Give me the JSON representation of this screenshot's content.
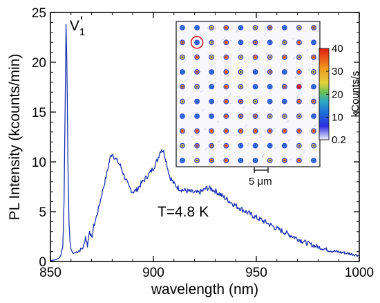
{
  "chart_data": {
    "type": "line",
    "xlabel": "wavelength (nm)",
    "ylabel": "PL Intensity (kcounts/min)",
    "xlim": [
      850,
      1000
    ],
    "ylim": [
      0,
      25
    ],
    "x_ticks": [
      "850",
      "900",
      "950",
      "1000"
    ],
    "y_ticks": [
      "0",
      "5",
      "10",
      "15",
      "20",
      "25"
    ],
    "series": [
      {
        "color": "#1a2fb0",
        "x": [
          850,
          852,
          854,
          855,
          856,
          856.6,
          857.1,
          857.6,
          858.0,
          858.5,
          859.0,
          859.5,
          860,
          861,
          862,
          864,
          866,
          867,
          868,
          869,
          870,
          871,
          873,
          875,
          877,
          879,
          880,
          881,
          882,
          884,
          886,
          888,
          890,
          892,
          894,
          896,
          898,
          900,
          902,
          903,
          904,
          905,
          906,
          907,
          908,
          910,
          912,
          914,
          916,
          918,
          920,
          922,
          924,
          926,
          928,
          930,
          932,
          934,
          936,
          938,
          940,
          945,
          950,
          955,
          960,
          965,
          970,
          975,
          980,
          985,
          990,
          995,
          1000
        ],
        "y": [
          0.1,
          0.15,
          0.3,
          0.6,
          1.5,
          6,
          15,
          23.8,
          20,
          10,
          4,
          2,
          1.2,
          0.8,
          0.9,
          1.1,
          1.4,
          2.5,
          1.6,
          3.2,
          2.2,
          3.5,
          5.0,
          6.8,
          8.5,
          10.4,
          10.9,
          10.5,
          10.2,
          9.6,
          8.5,
          7.5,
          7.0,
          7.2,
          7.8,
          8.3,
          8.8,
          9.4,
          10.2,
          10.9,
          11.3,
          11.0,
          10.3,
          9.3,
          8.5,
          7.8,
          7.4,
          7.2,
          7.1,
          7.0,
          6.9,
          6.9,
          7.1,
          7.4,
          7.3,
          7.1,
          6.8,
          6.5,
          6.2,
          5.9,
          5.6,
          5.0,
          4.4,
          3.9,
          3.3,
          2.8,
          2.3,
          1.8,
          1.45,
          1.15,
          0.95,
          0.8,
          0.6
        ]
      }
    ],
    "annotations": [
      {
        "text": "V",
        "sub": "1",
        "prime": "'",
        "at": [
          859,
          23.2
        ]
      },
      {
        "text": "T=4.8 K",
        "at": [
          902,
          4.5
        ]
      }
    ],
    "inset": {
      "type": "heatmap",
      "grid": [
        10,
        10
      ],
      "colorbar": {
        "min": "0.2",
        "max": "40",
        "ticks": [
          "0.2",
          "10",
          "20",
          "30",
          "40"
        ],
        "label": "kCounts/s"
      },
      "scalebar": "5 μm",
      "colors": [
        "#f6f6fb",
        "#2f3bd8",
        "#2a8ccf",
        "#e8d52a",
        "#f08a1c",
        "#d62020"
      ],
      "highlighted_cell": [
        1,
        1
      ]
    }
  }
}
